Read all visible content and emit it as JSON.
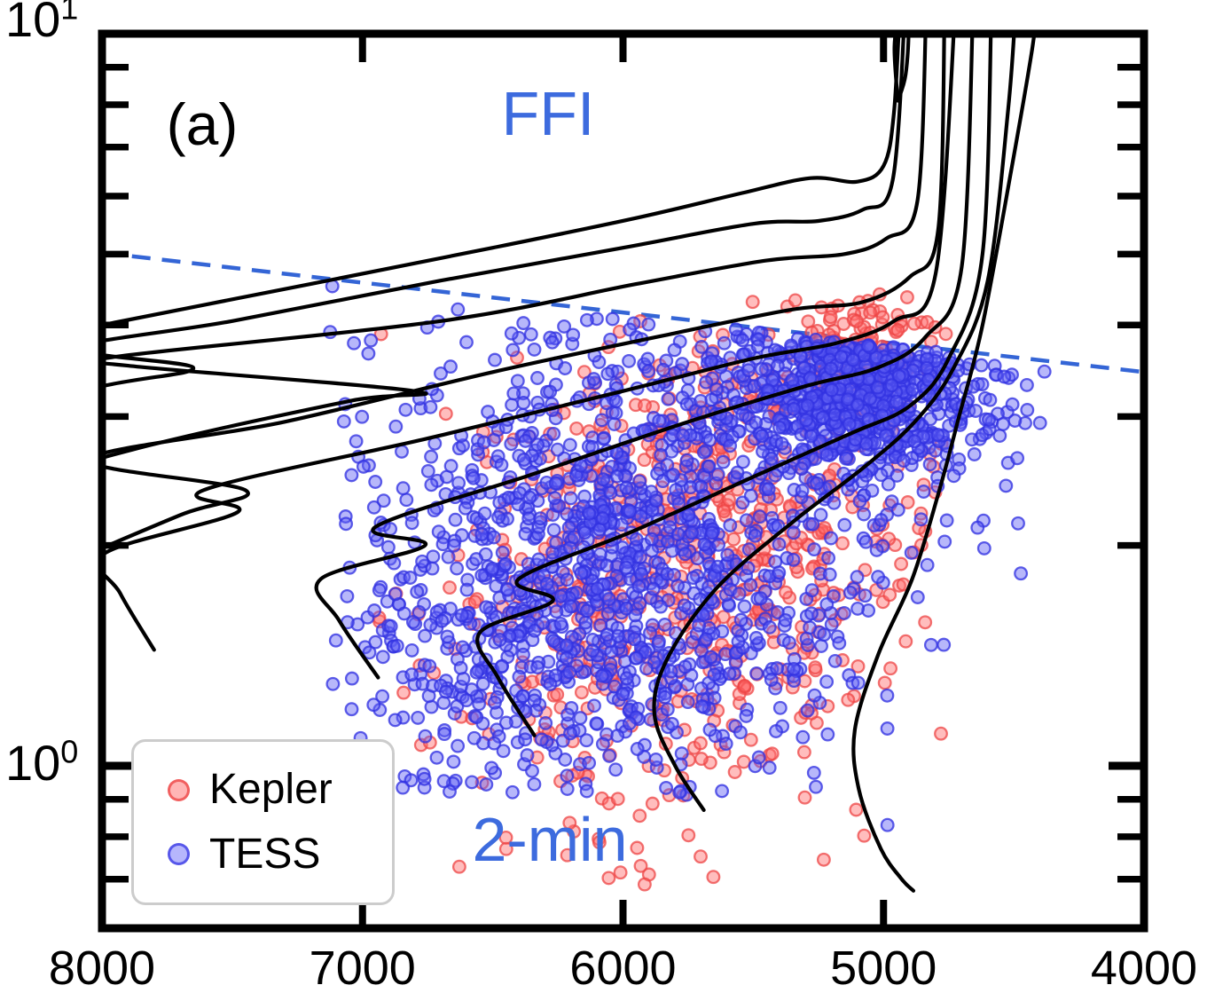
{
  "figure": {
    "panel_label": "(a)",
    "background": "#ffffff",
    "frame_color": "#000000"
  },
  "region_labels": {
    "ffi": {
      "text": "FFI",
      "color": "#3D6BDE"
    },
    "two_min": {
      "text": "2-min",
      "color": "#3D6BDE"
    }
  },
  "legend": {
    "items": [
      {
        "label": "Kepler",
        "marker_fill": "rgba(255,108,108,0.5)",
        "marker_stroke": "rgba(238,80,80,0.85)"
      },
      {
        "label": "TESS",
        "marker_fill": "rgba(110,110,250,0.5)",
        "marker_stroke": "rgba(70,70,230,0.85)"
      }
    ]
  },
  "chart_data": {
    "type": "scatter",
    "title": "",
    "xlabel": "",
    "ylabel": "",
    "x_axis": {
      "range": [
        8000,
        4000
      ],
      "reversed": true,
      "ticks": [
        8000,
        7000,
        6000,
        5000,
        4000
      ],
      "tick_labels": [
        "8000",
        "7000",
        "6000",
        "5000",
        "4000"
      ]
    },
    "y_axis": {
      "scale": "log",
      "range": [
        0.6,
        10
      ],
      "major_ticks": [
        10,
        1
      ],
      "major_tick_labels": [
        {
          "base": "10",
          "exp": "1",
          "value": 10
        },
        {
          "base": "10",
          "exp": "0",
          "value": 1
        }
      ],
      "minor_ticks": [
        9,
        8,
        7,
        6,
        5,
        4,
        3,
        2,
        0.9,
        0.8,
        0.7,
        0.6
      ]
    },
    "grid": false,
    "legend_position": "lower-left",
    "selection_cut_line": {
      "style": "dashed",
      "color": "#3465D6",
      "width": 4.5,
      "dash": [
        21,
        13
      ],
      "from": [
        8000,
        5.02
      ],
      "to": [
        4000,
        3.45
      ]
    },
    "series": [
      {
        "name": "Kepler",
        "marker": {
          "shape": "circle",
          "radius": 6.8,
          "fill": "rgba(255,108,108,0.45)",
          "stroke": "rgba(238,68,68,0.75)",
          "stroke_width": 2.3
        },
        "cluster_model": {
          "seed": 20240817,
          "count": 800,
          "t_range": [
            4660,
            6980
          ],
          "logr_range": [
            -0.165,
            0.65
          ],
          "blobs": [
            {
              "weight": 0.5,
              "mean": [
                5900,
                0.185
              ],
              "sigma": [
                430,
                0.16
              ],
              "below_cut": true
            },
            {
              "weight": 0.33,
              "mean": [
                5520,
                0.4
              ],
              "sigma": [
                360,
                0.12
              ],
              "below_cut": true
            },
            {
              "weight": 0.17,
              "mean": [
                5060,
                0.565
              ],
              "sigma": [
                130,
                0.045
              ],
              "below_cut": false
            }
          ]
        },
        "outliers": [
          [
            5653,
            0.705
          ],
          [
            6010,
            0.715
          ],
          [
            6214,
            0.755
          ]
        ]
      },
      {
        "name": "TESS",
        "marker": {
          "shape": "circle",
          "radius": 6.8,
          "fill": "rgba(96,96,245,0.45)",
          "stroke": "rgba(50,50,225,0.78)",
          "stroke_width": 2.3
        },
        "cluster_model": {
          "seed": 77001234,
          "count": 2150,
          "t_range": [
            4360,
            7130
          ],
          "logr_range": [
            -0.04,
            0.66
          ],
          "blobs": [
            {
              "weight": 0.4,
              "mean": [
                5950,
                0.33
              ],
              "sigma": [
                520,
                0.17
              ],
              "below_cut": true
            },
            {
              "weight": 0.38,
              "mean": [
                5080,
                0.52
              ],
              "sigma": [
                260,
                0.065
              ],
              "below_cut": true
            },
            {
              "weight": 0.22,
              "mean": [
                6250,
                0.18
              ],
              "sigma": [
                430,
                0.14
              ],
              "below_cut": true
            }
          ]
        },
        "outliers": [
          [
            4985,
            0.83
          ],
          [
            6580,
            0.95
          ]
        ]
      }
    ],
    "evolution_tracks": {
      "color": "#000000",
      "width": 4.2,
      "tracks": [
        {
          "points": [
            [
              8700,
              3.55
            ],
            [
              8000,
              4.0
            ],
            [
              7200,
              4.55
            ],
            [
              6500,
              5.1
            ],
            [
              5950,
              5.6
            ],
            [
              5550,
              6.05
            ],
            [
              5280,
              6.35
            ],
            [
              5100,
              6.28
            ],
            [
              5000,
              6.6
            ],
            [
              4960,
              7.8
            ],
            [
              4935,
              11.3
            ]
          ]
        },
        {
          "points": [
            [
              8700,
              2.9
            ],
            [
              8000,
              3.3
            ],
            [
              7650,
              3.5
            ],
            [
              8100,
              3.72
            ],
            [
              7500,
              4.05
            ],
            [
              6700,
              4.6
            ],
            [
              6000,
              5.1
            ],
            [
              5500,
              5.5
            ],
            [
              5250,
              5.55
            ],
            [
              5080,
              5.75
            ],
            [
              4965,
              6.3
            ],
            [
              4915,
              11.3
            ]
          ]
        },
        {
          "points": [
            [
              8500,
              2.35
            ],
            [
              7800,
              2.75
            ],
            [
              7050,
              3.15
            ],
            [
              6800,
              3.25
            ],
            [
              7900,
              3.52
            ],
            [
              7950,
              3.62
            ],
            [
              6700,
              4.05
            ],
            [
              5950,
              4.55
            ],
            [
              5450,
              4.9
            ],
            [
              5150,
              5.0
            ],
            [
              4990,
              5.25
            ],
            [
              4870,
              5.9
            ],
            [
              4835,
              11.3
            ]
          ]
        },
        {
          "points": [
            [
              8200,
              1.85
            ],
            [
              7700,
              2.2
            ],
            [
              7450,
              2.38
            ],
            [
              8050,
              2.62
            ],
            [
              7300,
              2.95
            ],
            [
              6500,
              3.45
            ],
            [
              5800,
              3.9
            ],
            [
              5350,
              4.2
            ],
            [
              5080,
              4.3
            ],
            [
              4900,
              4.65
            ],
            [
              4790,
              5.4
            ],
            [
              4765,
              11.3
            ]
          ]
        },
        {
          "points": [
            [
              7800,
              1.44
            ],
            [
              7930,
              1.72
            ],
            [
              7990,
              1.95
            ],
            [
              7480,
              2.22
            ],
            [
              7610,
              2.38
            ],
            [
              6750,
              2.8
            ],
            [
              6000,
              3.25
            ],
            [
              5500,
              3.6
            ],
            [
              5180,
              3.78
            ],
            [
              4960,
              4.05
            ],
            [
              4800,
              4.7
            ],
            [
              4722,
              11.3
            ]
          ]
        },
        {
          "points": [
            [
              6940,
              1.32
            ],
            [
              7090,
              1.58
            ],
            [
              7160,
              1.8
            ],
            [
              6760,
              2.0
            ],
            [
              6950,
              2.12
            ],
            [
              6350,
              2.5
            ],
            [
              5750,
              2.95
            ],
            [
              5300,
              3.3
            ],
            [
              5020,
              3.5
            ],
            [
              4840,
              3.85
            ],
            [
              4700,
              4.8
            ],
            [
              4655,
              11.3
            ]
          ]
        },
        {
          "points": [
            [
              6340,
              1.1
            ],
            [
              6480,
              1.32
            ],
            [
              6550,
              1.52
            ],
            [
              6270,
              1.68
            ],
            [
              6400,
              1.8
            ],
            [
              5950,
              2.1
            ],
            [
              5480,
              2.5
            ],
            [
              5120,
              2.85
            ],
            [
              4900,
              3.1
            ],
            [
              4750,
              3.6
            ],
            [
              4620,
              5.0
            ],
            [
              4585,
              11.3
            ]
          ]
        },
        {
          "points": [
            [
              5690,
              0.87
            ],
            [
              5800,
              1.0
            ],
            [
              5880,
              1.18
            ],
            [
              5830,
              1.4
            ],
            [
              5640,
              1.75
            ],
            [
              5350,
              2.15
            ],
            [
              5080,
              2.55
            ],
            [
              4880,
              2.95
            ],
            [
              4730,
              3.5
            ],
            [
              4600,
              4.6
            ],
            [
              4520,
              8.0
            ],
            [
              4490,
              11.3
            ]
          ]
        },
        {
          "points": [
            [
              4885,
              0.675
            ],
            [
              4930,
              0.7
            ],
            [
              5010,
              0.77
            ],
            [
              5095,
              0.93
            ],
            [
              5110,
              1.12
            ],
            [
              5020,
              1.42
            ],
            [
              4890,
              1.8
            ],
            [
              4790,
              2.35
            ],
            [
              4710,
              3.0
            ],
            [
              4620,
              4.0
            ],
            [
              4510,
              6.5
            ],
            [
              4430,
              9.5
            ],
            [
              4405,
              11.3
            ]
          ]
        }
      ],
      "top_loop": {
        "points": [
          [
            4945,
            8.1
          ],
          [
            4915,
            8.8
          ],
          [
            4905,
            10.2
          ],
          [
            4935,
            10.7
          ],
          [
            4958,
            9.6
          ],
          [
            4945,
            8.1
          ]
        ]
      }
    }
  }
}
